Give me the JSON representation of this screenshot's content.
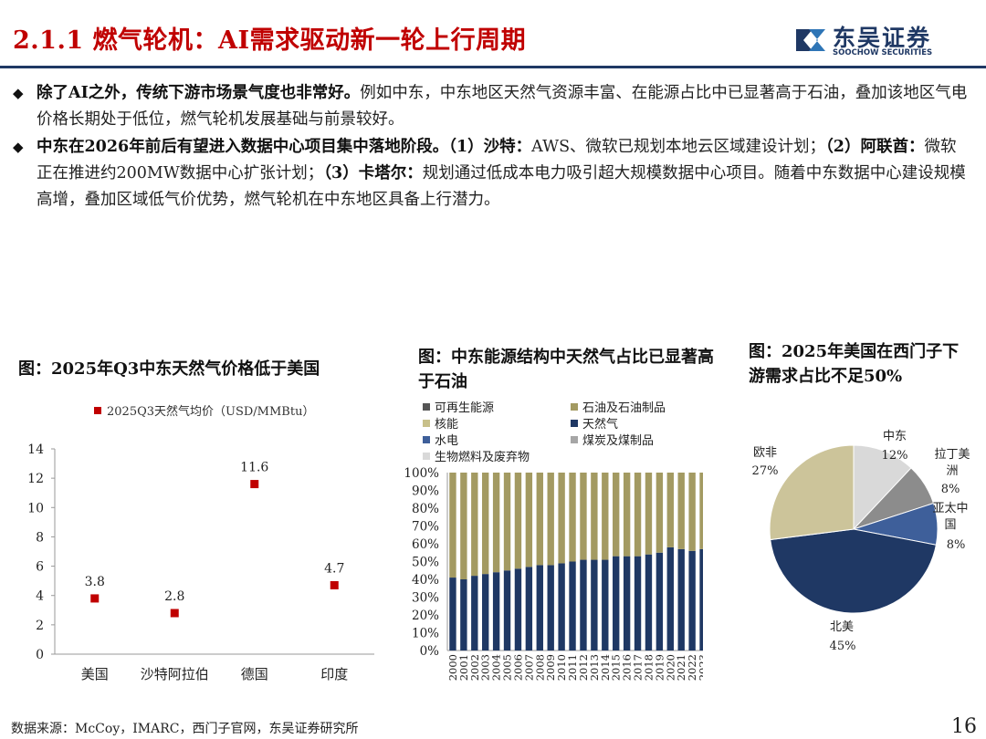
{
  "header": {
    "title": "2.1.1 燃气轮机：AI需求驱动新一轮上行周期",
    "logo_cn": "东吴证券",
    "logo_en": "SOOCHOW SECURITIES"
  },
  "bullets": [
    {
      "bold": "除了AI之外，传统下游市场景气度也非常好。",
      "text": "例如中东，中东地区天然气资源丰富、在能源占比中已显著高于石油，叠加该地区气电价格长期处于低位，燃气轮机发展基础与前景较好。"
    },
    {
      "bold": "中东在2026年前后有望进入数据中心项目集中落地阶段。",
      "parts": [
        {
          "b": "（1）沙特：",
          "t": "AWS、微软已规划本地云区域建设计划；"
        },
        {
          "b": "（2）阿联酋：",
          "t": "微软正在推进约200MW数据中心扩张计划；"
        },
        {
          "b": "（3）卡塔尔：",
          "t": "规划通过低成本电力吸引超大规模数据中心项目。随着中东数据中心建设规模高增，叠加区域低气价优势，燃气轮机在中东地区具备上行潜力。"
        }
      ]
    }
  ],
  "chart_titles": {
    "c1": "图：2025年Q3中东天然气价格低于美国",
    "c2": "图：中东能源结构中天然气占比已显著高于石油",
    "c3": "图：2025年美国在西门子下游需求占比不足50%"
  },
  "chart_data": [
    {
      "type": "scatter",
      "title": "图：2025年Q3中东天然气价格低于美国",
      "legend": "2025Q3天然气均价（USD/MMBtu）",
      "categories": [
        "美国",
        "沙特阿拉伯",
        "德国",
        "印度"
      ],
      "values": [
        3.8,
        2.8,
        11.6,
        4.7
      ],
      "data_labels": [
        "3.8",
        "2.8",
        "11.6",
        "4.7"
      ],
      "ylim": [
        0,
        14
      ],
      "yticks": [
        0,
        2,
        4,
        6,
        8,
        10,
        12,
        14
      ],
      "color": "#c00000"
    },
    {
      "type": "bar",
      "stacked": true,
      "title": "图：中东能源结构中天然气占比已显著高于石油",
      "legend": [
        "可再生能源",
        "石油及石油制品",
        "核能",
        "天然气",
        "水电",
        "煤炭及煤制品",
        "生物燃料及废弃物"
      ],
      "legend_colors": [
        "#555555",
        "#a39a62",
        "#c8c08a",
        "#1f3864",
        "#3e5f9a",
        "#a6a6a6",
        "#d9d9d9"
      ],
      "categories": [
        "2000",
        "2001",
        "2002",
        "2003",
        "2004",
        "2005",
        "2006",
        "2007",
        "2008",
        "2009",
        "2010",
        "2011",
        "2012",
        "2013",
        "2014",
        "2015",
        "2016",
        "2017",
        "2018",
        "2019",
        "2020",
        "2021",
        "2022",
        "2023"
      ],
      "series": [
        {
          "name": "天然气",
          "color": "#1f3864",
          "values": [
            41,
            40,
            42,
            43,
            44,
            45,
            46,
            47,
            48,
            48,
            49,
            50,
            51,
            51,
            51,
            53,
            53,
            53,
            54,
            55,
            58,
            57,
            56,
            57
          ]
        },
        {
          "name": "石油及石油制品",
          "color": "#a39a62",
          "values": [
            59,
            60,
            58,
            57,
            56,
            55,
            54,
            53,
            52,
            52,
            51,
            50,
            49,
            49,
            49,
            47,
            47,
            47,
            46,
            45,
            42,
            43,
            44,
            43
          ]
        }
      ],
      "ylim": [
        0,
        100
      ],
      "yticks": [
        "0%",
        "10%",
        "20%",
        "30%",
        "40%",
        "50%",
        "60%",
        "70%",
        "80%",
        "90%",
        "100%"
      ]
    },
    {
      "type": "pie",
      "title": "图：2025年美国在西门子下游需求占比不足50%",
      "slices": [
        {
          "label": "中东",
          "value": 12,
          "pct": "12%",
          "color": "#d9d9d9"
        },
        {
          "label": "拉丁美洲",
          "value": 8,
          "pct": "8%",
          "color": "#8c8c8c"
        },
        {
          "label": "亚太中国",
          "value": 8,
          "pct": "8%",
          "color": "#3e5f9a"
        },
        {
          "label": "北美",
          "value": 45,
          "pct": "45%",
          "color": "#1f3864"
        },
        {
          "label": "欧非",
          "value": 27,
          "pct": "27%",
          "color": "#ccc49a"
        }
      ]
    }
  ],
  "footer": {
    "source": "数据来源：McCoy，IMARC，西门子官网，东吴证券研究所",
    "page": "16"
  }
}
